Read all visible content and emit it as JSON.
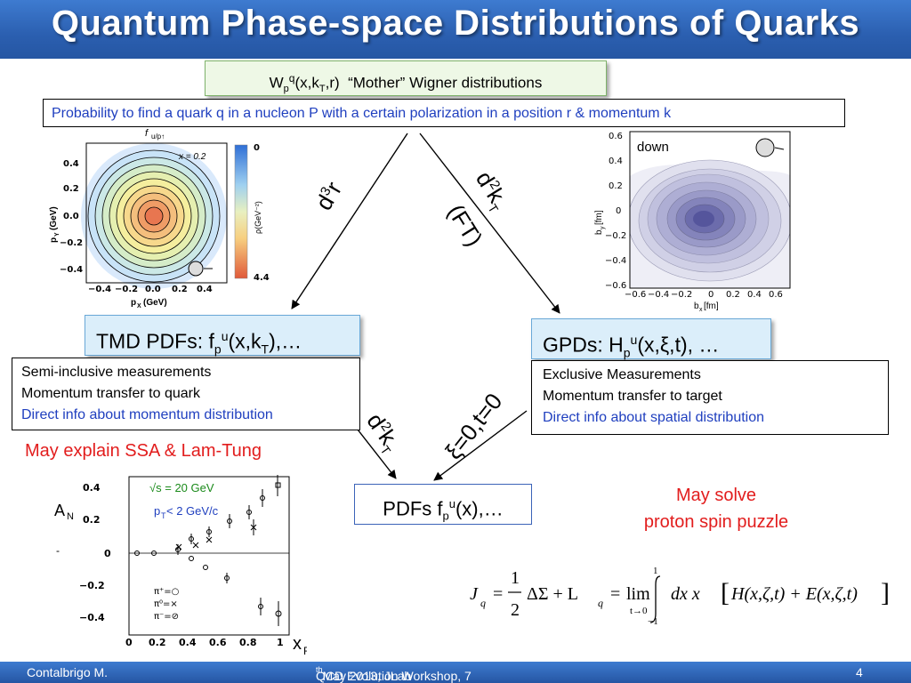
{
  "title": "Quantum Phase-space Distributions of Quarks",
  "wigner": {
    "w": "W",
    "p_sub": "p",
    "q_sup": "q",
    "args": "(x,k",
    "t_sub": "T",
    "args_end": ",r)",
    "desc": "“Mother” Wigner distributions"
  },
  "probability": "Probability to find a quark q in a nucleon P with a certain polarization in a position r  & momentum k",
  "arrows": {
    "d3r_d": "d",
    "d3r_3": "3",
    "d3r_r": "r",
    "d2kt_d": "d",
    "d2kt_2": "2",
    "d2kt_k": "k",
    "d2kt_T": "T",
    "ft": "(FT)",
    "xi": "ξ=0,t=0"
  },
  "tmd": {
    "prefix": "TMD PDFs: f",
    "sub": "p",
    "sup": "u",
    "args": "(x,k",
    "t_sub": "T",
    "end": "),…"
  },
  "gpd": {
    "prefix": "GPDs: H",
    "sub": "p",
    "sup": "u",
    "args": "(x,ξ,t), …"
  },
  "tmd_desc": [
    "Semi-inclusive measurements",
    "Momentum transfer to quark",
    "Direct info about momentum distribution"
  ],
  "gpd_desc": [
    "Exclusive Measurements",
    "Momentum transfer to target",
    "Direct info about spatial distribution"
  ],
  "pdf": {
    "prefix": "PDFs f",
    "sub": "p",
    "sup": "u",
    "args": "(x),…"
  },
  "ssa": "May explain SSA & Lam-Tung",
  "spin": [
    "May solve",
    "proton spin puzzle"
  ],
  "formula": {
    "lhs": "J",
    "q": "q",
    "half_num": "1",
    "half_den": "2",
    "mid": "ΔΣ + L",
    "lim": "lim",
    "lim_sub": "t→0",
    "upper": "1",
    "lower": "−1",
    "integrand": "dx  x",
    "bracket": "H(x,ζ,t) + E(x,ζ,t)"
  },
  "tmd_plot": {
    "title_f": "f",
    "title_sub": "u/p↑",
    "x_label": "p",
    "x_sub": "X",
    "x_unit": "(GeV)",
    "y_label": "p",
    "y_sub": "Y",
    "y_unit": "(GeV)",
    "x_ticks": [
      "−0.4",
      "−0.2",
      "0.0",
      "0.2",
      "0.4"
    ],
    "y_ticks": [
      "0.4",
      "0.2",
      "0.0",
      "−0.2",
      "−0.4"
    ],
    "annot": "x = 0.2",
    "cbar_label": "ρ(GeV⁻²)",
    "cbar_top": "0",
    "cbar_bottom": "4.4"
  },
  "gpd_plot": {
    "annot": "down",
    "y_label": "b",
    "y_sub": "y",
    "y_unit": "[fm]",
    "x_label": "b",
    "x_sub": "x",
    "x_unit": "[fm]",
    "x_ticks": [
      "−0.6",
      "−0.4",
      "−0.2",
      "0",
      "0.2",
      "0.4",
      "0.6"
    ],
    "y_ticks": [
      "0.6",
      "0.4",
      "0.2",
      "0",
      "−0.2",
      "−0.4",
      "−0.6"
    ]
  },
  "an_plot": {
    "y_label": "A",
    "y_sub": "N",
    "x_label": "x",
    "x_sub": "F",
    "energy": "√s = 20 GeV",
    "pt_p": "p",
    "pt_sub": "T",
    "pt_rest": "< 2 GeV/c",
    "dash": "-",
    "x_ticks": [
      "0",
      "0.2",
      "0.4",
      "0.6",
      "0.8",
      "1"
    ],
    "y_ticks": [
      "0.4",
      "0.2",
      "0",
      "−0.2",
      "−0.4"
    ],
    "legend": [
      "π⁺=○",
      "π⁰=×",
      "π⁻=⊘"
    ]
  },
  "footer": {
    "author": "Contalbrigo M.",
    "event_pre": "QCD Evolution Workshop, 7",
    "event_sup": "th",
    "event_post": " May 2013, JLab",
    "page": "4"
  }
}
